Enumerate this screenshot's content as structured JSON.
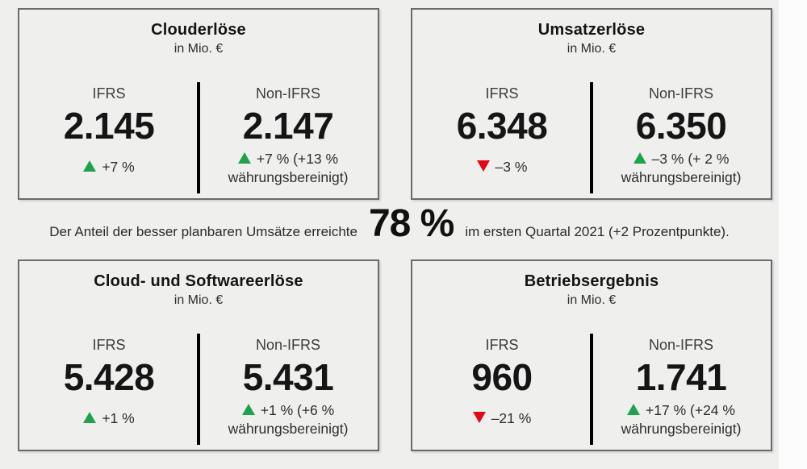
{
  "colors": {
    "background": "#efefee",
    "card_border": "#6b6b6b",
    "divider": "#000000",
    "positive": "#1fa24b",
    "negative": "#e30613"
  },
  "summary": {
    "prefix": "Der Anteil der besser planbaren Umsätze erreichte",
    "highlight": "78 %",
    "suffix": "im ersten Quartal 2021 (+2 Prozentpunkte)."
  },
  "cards": [
    {
      "title": "Clouderlöse",
      "subtitle": "in Mio. €",
      "ifrs": {
        "label": "IFRS",
        "value": "2.145",
        "direction": "up",
        "change": "+7 %"
      },
      "non_ifrs": {
        "label": "Non-IFRS",
        "value": "2.147",
        "direction": "up",
        "change": "+7 % (+13 %",
        "change2": "währungsbereinigt)"
      }
    },
    {
      "title": "Umsatzerlöse",
      "subtitle": "in Mio. €",
      "ifrs": {
        "label": "IFRS",
        "value": "6.348",
        "direction": "down",
        "change": "–3 %"
      },
      "non_ifrs": {
        "label": "Non-IFRS",
        "value": "6.350",
        "direction": "up",
        "change": "–3 % (+ 2 %",
        "change2": "währungsbereinigt)"
      }
    },
    {
      "title": "Cloud- und Softwareerlöse",
      "subtitle": "in Mio. €",
      "ifrs": {
        "label": "IFRS",
        "value": "5.428",
        "direction": "up",
        "change": "+1 %"
      },
      "non_ifrs": {
        "label": "Non-IFRS",
        "value": "5.431",
        "direction": "up",
        "change": "+1 % (+6 %",
        "change2": "währungsbereinigt)"
      }
    },
    {
      "title": "Betriebsergebnis",
      "subtitle": "in Mio. €",
      "ifrs": {
        "label": "IFRS",
        "value": "960",
        "direction": "down",
        "change": "–21 %"
      },
      "non_ifrs": {
        "label": "Non-IFRS",
        "value": "1.741",
        "direction": "up",
        "change": "+17 % (+24 %",
        "change2": "währungsbereinigt)"
      }
    }
  ],
  "chart_data": {
    "type": "table",
    "unit": "in Mio. €",
    "columns": [
      "IFRS",
      "Non-IFRS"
    ],
    "rows": [
      {
        "metric": "Clouderlöse",
        "ifrs": 2145,
        "ifrs_change_pct": 7,
        "non_ifrs": 2147,
        "non_ifrs_change_pct": 7,
        "non_ifrs_change_fx_adjusted_pct": 13
      },
      {
        "metric": "Umsatzerlöse",
        "ifrs": 6348,
        "ifrs_change_pct": -3,
        "non_ifrs": 6350,
        "non_ifrs_change_pct": -3,
        "non_ifrs_change_fx_adjusted_pct": 2
      },
      {
        "metric": "Cloud- und Softwareerlöse",
        "ifrs": 5428,
        "ifrs_change_pct": 1,
        "non_ifrs": 5431,
        "non_ifrs_change_pct": 1,
        "non_ifrs_change_fx_adjusted_pct": 6
      },
      {
        "metric": "Betriebsergebnis",
        "ifrs": 960,
        "ifrs_change_pct": -21,
        "non_ifrs": 1741,
        "non_ifrs_change_pct": 17,
        "non_ifrs_change_fx_adjusted_pct": 24
      }
    ],
    "annotation": "Der Anteil der besser planbaren Umsätze erreichte 78 % im ersten Quartal 2021 (+2 Prozentpunkte)."
  }
}
